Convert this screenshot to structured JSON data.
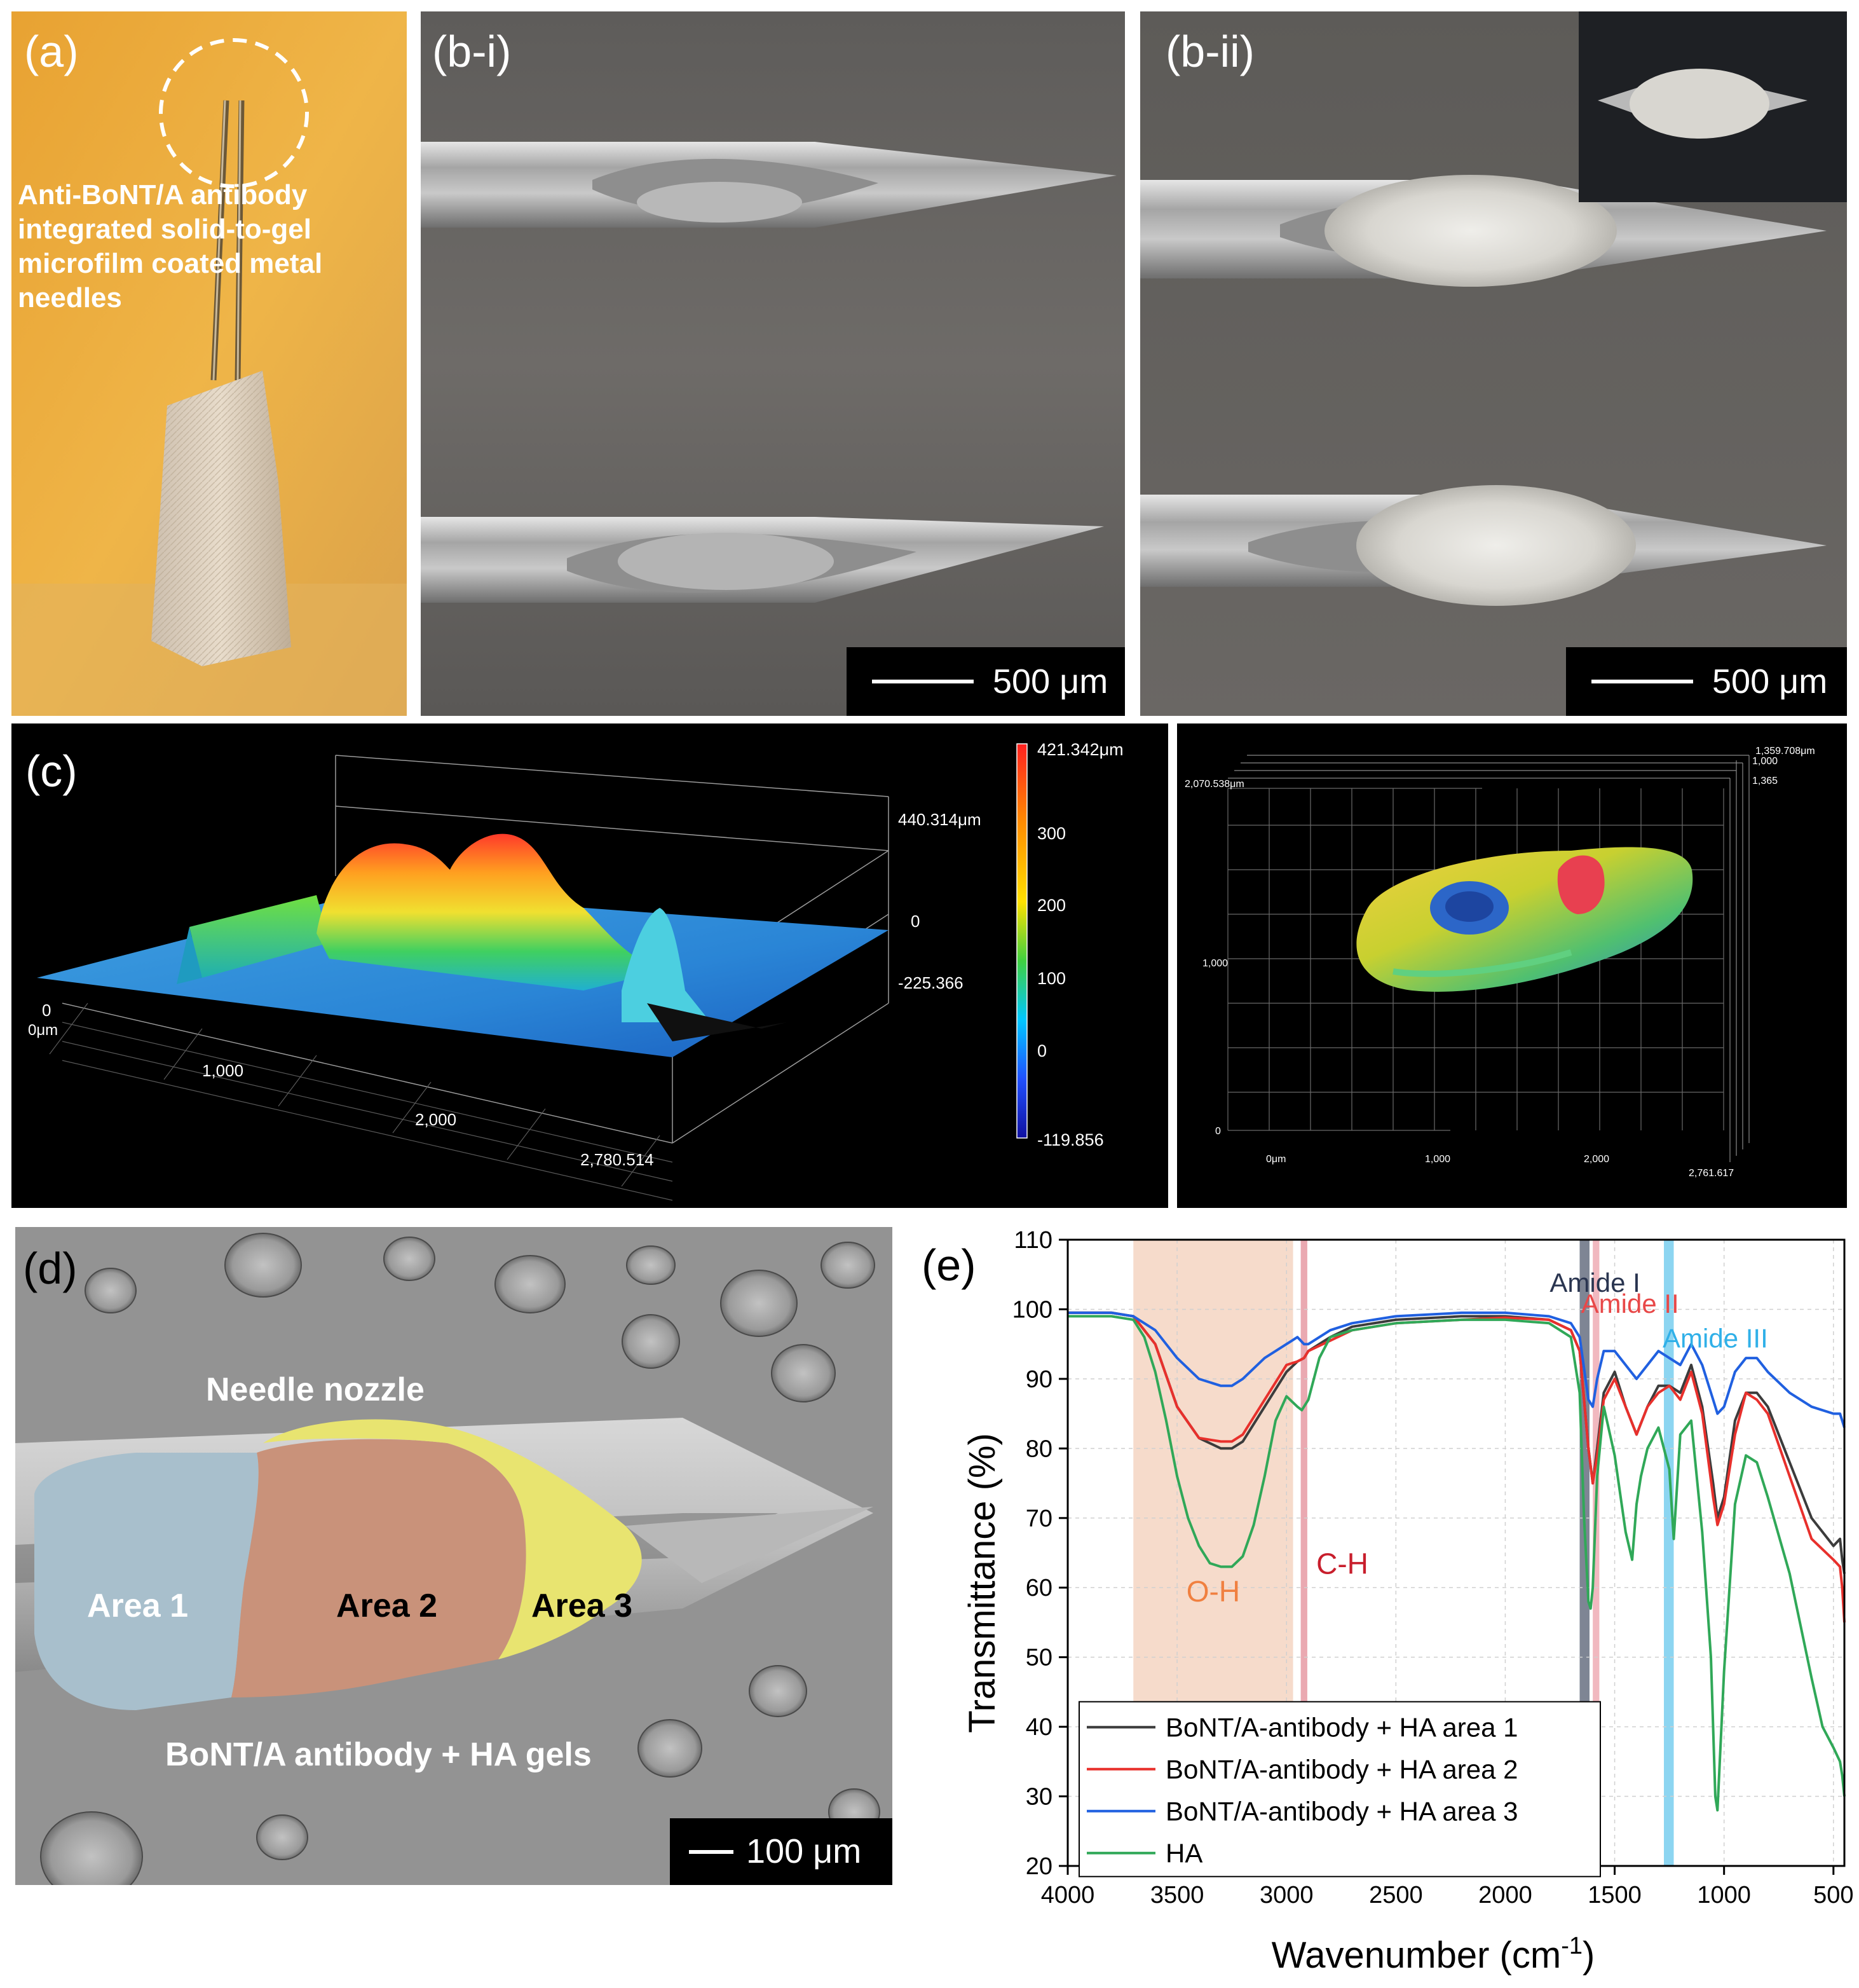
{
  "panel_a": {
    "label": "(a)",
    "caption_lines": [
      "Anti-BoNT/A antibody",
      "integrated solid-to-gel",
      "microfilm coated metal",
      "needles"
    ]
  },
  "panel_bi": {
    "label": "(b-i)",
    "scale": "500 μm"
  },
  "panel_bii": {
    "label": "(b-ii)",
    "scale": "500 μm"
  },
  "panel_c": {
    "label": "(c)",
    "left": {
      "z_top": "440.314μm",
      "z_zero": "0",
      "z_min": "-225.366",
      "origin_zero": "0",
      "origin_um": "0μm",
      "x_ticks": [
        "1,000",
        "2,000",
        "2,780.514"
      ],
      "colorbar": {
        "max": "421.342μm",
        "ticks": [
          "300",
          "200",
          "100",
          "0"
        ],
        "min": "-119.856",
        "colors": [
          "#ff2020",
          "#ff8c00",
          "#ffe000",
          "#40d040",
          "#00c8ff",
          "#2050ff",
          "#1010a0"
        ]
      }
    },
    "right": {
      "top_labels": [
        "1,359.708μm",
        "1,000",
        "1,365"
      ],
      "y_top": "2,070.538μm",
      "y_mid": "1,000",
      "y_zero": "0",
      "x_labels": [
        "0μm",
        "1,000",
        "2,000",
        "2,761.617"
      ]
    }
  },
  "panel_d": {
    "label": "(d)",
    "needle_label": "Needle nozzle",
    "area1": "Area 1",
    "area2": "Area 2",
    "area3": "Area 3",
    "gel_label": "BoNT/A antibody + HA gels",
    "scale": "100 μm"
  },
  "panel_e": {
    "label": "(e)",
    "band_labels": {
      "oh": "O-H",
      "ch": "C-H",
      "amide1": "Amide I",
      "amide2": "Amide II",
      "amide3": "Amide III"
    },
    "colors": {
      "area1": "#3c3c3c",
      "area2": "#e8302c",
      "area3": "#2060e0",
      "ha": "#30a858",
      "oh_band": "#f5d5c2",
      "ch_band": "#e8a0a8",
      "amide1_band": "#707888",
      "amide2_band": "#f0b0b8",
      "amide3_band": "#80d0f0"
    },
    "band_text_colors": {
      "oh": "#f08040",
      "ch": "#c81e2c",
      "amide1": "#2a3550",
      "amide2": "#e84848",
      "amide3": "#30b0e8"
    }
  },
  "chart_data": {
    "type": "line",
    "xlabel": "Wavenumber (cm-1)",
    "ylabel": "Transmittance (%)",
    "xlim": [
      4000,
      450
    ],
    "ylim": [
      20,
      110
    ],
    "xticks": [
      4000,
      3500,
      3000,
      2500,
      2000,
      1500,
      1000,
      500
    ],
    "yticks": [
      20,
      30,
      40,
      50,
      60,
      70,
      80,
      90,
      100,
      110
    ],
    "grid": true,
    "legend_position": "bottom-left",
    "bands": [
      {
        "name": "O-H",
        "from": 3700,
        "to": 2970
      },
      {
        "name": "C-H",
        "from": 2935,
        "to": 2905
      },
      {
        "name": "Amide I",
        "from": 1660,
        "to": 1615
      },
      {
        "name": "Amide II",
        "from": 1600,
        "to": 1570
      },
      {
        "name": "Amide III",
        "from": 1275,
        "to": 1230
      }
    ],
    "series": [
      {
        "name": "BoNT/A-antibody + HA area 1",
        "x": [
          4000,
          3800,
          3700,
          3600,
          3500,
          3400,
          3300,
          3250,
          3200,
          3100,
          3000,
          2950,
          2920,
          2900,
          2800,
          2700,
          2500,
          2200,
          2000,
          1800,
          1700,
          1660,
          1620,
          1600,
          1580,
          1550,
          1500,
          1450,
          1400,
          1350,
          1300,
          1250,
          1200,
          1150,
          1100,
          1050,
          1030,
          1000,
          950,
          900,
          850,
          800,
          700,
          600,
          500,
          470,
          460,
          450
        ],
        "y": [
          99.5,
          99.5,
          99,
          95,
          86,
          81.5,
          80,
          80,
          81,
          86,
          91,
          92.5,
          93,
          94,
          96,
          97.5,
          98.5,
          99,
          99,
          98.5,
          97,
          94,
          80,
          75,
          80,
          88,
          91,
          86,
          82,
          86,
          89,
          89,
          88,
          92,
          86,
          75,
          70,
          73,
          84,
          88,
          88,
          86,
          78,
          70,
          66,
          67,
          64,
          62
        ]
      },
      {
        "name": "BoNT/A-antibody + HA area 2",
        "x": [
          4000,
          3800,
          3700,
          3600,
          3500,
          3400,
          3300,
          3250,
          3200,
          3100,
          3000,
          2950,
          2920,
          2900,
          2800,
          2700,
          2500,
          2200,
          2000,
          1800,
          1700,
          1660,
          1620,
          1600,
          1580,
          1550,
          1500,
          1450,
          1400,
          1350,
          1300,
          1250,
          1200,
          1150,
          1100,
          1050,
          1030,
          1000,
          950,
          900,
          850,
          800,
          700,
          600,
          500,
          470,
          460,
          450
        ],
        "y": [
          99.5,
          99.5,
          99,
          95,
          86,
          81.5,
          81,
          81,
          82,
          87,
          92,
          92.5,
          93,
          94,
          95.5,
          97,
          98,
          98.5,
          98.8,
          98.5,
          97,
          94,
          80,
          75,
          79,
          87,
          90,
          86,
          82,
          86,
          88,
          89,
          87,
          91,
          85,
          73,
          69,
          72,
          82,
          88,
          87,
          85,
          76,
          67,
          64,
          63,
          60,
          55
        ]
      },
      {
        "name": "BoNT/A-antibody + HA area 3",
        "x": [
          4000,
          3800,
          3700,
          3600,
          3500,
          3400,
          3300,
          3250,
          3200,
          3100,
          3000,
          2950,
          2920,
          2900,
          2800,
          2700,
          2500,
          2200,
          2000,
          1800,
          1700,
          1660,
          1620,
          1600,
          1580,
          1550,
          1500,
          1450,
          1400,
          1350,
          1300,
          1250,
          1200,
          1150,
          1100,
          1050,
          1030,
          1000,
          950,
          900,
          850,
          800,
          700,
          600,
          500,
          470,
          460,
          450
        ],
        "y": [
          99.5,
          99.5,
          99,
          97,
          93,
          90,
          89,
          89,
          90,
          93,
          95,
          96,
          95,
          95,
          97,
          98,
          99,
          99.5,
          99.5,
          99,
          98,
          96,
          87,
          86,
          90,
          94,
          94,
          92,
          90,
          92,
          94,
          93,
          92,
          95,
          92,
          87,
          85,
          86,
          91,
          93,
          93,
          91,
          88,
          86,
          85,
          85,
          84,
          83
        ]
      },
      {
        "name": "HA",
        "x": [
          4000,
          3800,
          3700,
          3650,
          3600,
          3550,
          3500,
          3450,
          3400,
          3350,
          3300,
          3250,
          3200,
          3150,
          3100,
          3050,
          3000,
          2950,
          2930,
          2900,
          2850,
          2800,
          2700,
          2500,
          2200,
          2000,
          1800,
          1700,
          1660,
          1640,
          1620,
          1610,
          1600,
          1580,
          1550,
          1500,
          1450,
          1420,
          1400,
          1380,
          1350,
          1300,
          1250,
          1230,
          1200,
          1150,
          1100,
          1060,
          1040,
          1030,
          1000,
          950,
          900,
          850,
          800,
          700,
          600,
          550,
          500,
          470,
          460,
          450
        ],
        "y": [
          99,
          99,
          98.5,
          96,
          91,
          84,
          76,
          70,
          66,
          63.5,
          63,
          63,
          64.5,
          69,
          76,
          84,
          87.5,
          86,
          85.5,
          87,
          93,
          96,
          97,
          98,
          98.5,
          98.5,
          98,
          96,
          88,
          70,
          58,
          57,
          60,
          76,
          86,
          79,
          68,
          64,
          72,
          76,
          80,
          83,
          77,
          67,
          82,
          84,
          68,
          50,
          30,
          28,
          48,
          72,
          79,
          78,
          73,
          62,
          47,
          40,
          37,
          35,
          33,
          30
        ]
      }
    ]
  }
}
